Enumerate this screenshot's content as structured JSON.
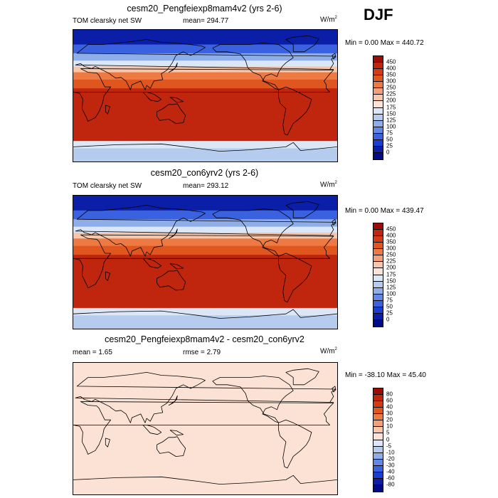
{
  "season": "DJF",
  "chart_data": [
    {
      "type": "heatmap",
      "title": "cesm20_Pengfeiexp8mam4v2 (yrs 2-6)",
      "left_label": "TOM clearsky net SW",
      "center_label": "mean= 294.77",
      "units": "W/m",
      "units_sup": "2",
      "min_max": "Min =   0.00 Max = 440.72",
      "colorbar": {
        "levels": [
          "450",
          "400",
          "350",
          "300",
          "250",
          "225",
          "200",
          "175",
          "150",
          "125",
          "100",
          "75",
          "50",
          "25",
          "0"
        ],
        "colors": [
          "#9e0d05",
          "#c0260d",
          "#d23b16",
          "#e0561f",
          "#ec7a42",
          "#f3a07a",
          "#f8c6ab",
          "#fbe2d4",
          "#dbe6f6",
          "#b5ccef",
          "#8eaeea",
          "#6287e6",
          "#3a61df",
          "#1a3ed1",
          "#0a1ea8",
          "#000c87"
        ]
      },
      "bands": [
        {
          "lat_from": 90,
          "lat_to": 70,
          "value": 10
        },
        {
          "lat_from": 70,
          "lat_to": 58,
          "value": 60
        },
        {
          "lat_from": 58,
          "lat_to": 48,
          "value": 110
        },
        {
          "lat_from": 48,
          "lat_to": 40,
          "value": 160
        },
        {
          "lat_from": 40,
          "lat_to": 32,
          "value": 210
        },
        {
          "lat_from": 32,
          "lat_to": 22,
          "value": 270
        },
        {
          "lat_from": 22,
          "lat_to": 10,
          "value": 330
        },
        {
          "lat_from": 10,
          "lat_to": -62,
          "value": 420
        },
        {
          "lat_from": -62,
          "lat_to": -72,
          "value": 170
        },
        {
          "lat_from": -72,
          "lat_to": -90,
          "value": 130
        }
      ]
    },
    {
      "type": "heatmap",
      "title": "cesm20_con6yrv2 (yrs 2-6)",
      "left_label": "TOM clearsky net SW",
      "center_label": "mean= 293.12",
      "units": "W/m",
      "units_sup": "2",
      "min_max": "Min =   0.00 Max = 439.47",
      "colorbar": {
        "levels": [
          "450",
          "400",
          "350",
          "300",
          "250",
          "225",
          "200",
          "175",
          "150",
          "125",
          "100",
          "75",
          "50",
          "25",
          "0"
        ],
        "colors": [
          "#9e0d05",
          "#c0260d",
          "#d23b16",
          "#e0561f",
          "#ec7a42",
          "#f3a07a",
          "#f8c6ab",
          "#fbe2d4",
          "#dbe6f6",
          "#b5ccef",
          "#8eaeea",
          "#6287e6",
          "#3a61df",
          "#1a3ed1",
          "#0a1ea8",
          "#000c87"
        ]
      },
      "bands": [
        {
          "lat_from": 90,
          "lat_to": 70,
          "value": 10
        },
        {
          "lat_from": 70,
          "lat_to": 58,
          "value": 60
        },
        {
          "lat_from": 58,
          "lat_to": 48,
          "value": 110
        },
        {
          "lat_from": 48,
          "lat_to": 40,
          "value": 160
        },
        {
          "lat_from": 40,
          "lat_to": 32,
          "value": 210
        },
        {
          "lat_from": 32,
          "lat_to": 22,
          "value": 270
        },
        {
          "lat_from": 22,
          "lat_to": 10,
          "value": 330
        },
        {
          "lat_from": 10,
          "lat_to": -62,
          "value": 420
        },
        {
          "lat_from": -62,
          "lat_to": -72,
          "value": 170
        },
        {
          "lat_from": -72,
          "lat_to": -90,
          "value": 130
        }
      ]
    },
    {
      "type": "heatmap",
      "title": "cesm20_Pengfeiexp8mam4v2 - cesm20_con6yrv2",
      "left_label": "mean =   1.65",
      "center_label": "rmse =   2.79",
      "units": "W/m",
      "units_sup": "2",
      "min_max": "Min = -38.10 Max =  45.40",
      "colorbar": {
        "levels": [
          "80",
          "60",
          "40",
          "30",
          "20",
          "10",
          "5",
          "0",
          "-5",
          "-10",
          "-20",
          "-30",
          "-40",
          "-60",
          "-80"
        ],
        "colors": [
          "#9e0d05",
          "#c0260d",
          "#d23b16",
          "#e0561f",
          "#ec7a42",
          "#f3a07a",
          "#f8c6ab",
          "#fbe2d4",
          "#dbe6f6",
          "#b5ccef",
          "#8eaeea",
          "#6287e6",
          "#3a61df",
          "#1a3ed1",
          "#0a1ea8",
          "#000c87"
        ]
      },
      "bands": [
        {
          "lat_from": 90,
          "lat_to": -90,
          "value": 2
        }
      ]
    }
  ]
}
